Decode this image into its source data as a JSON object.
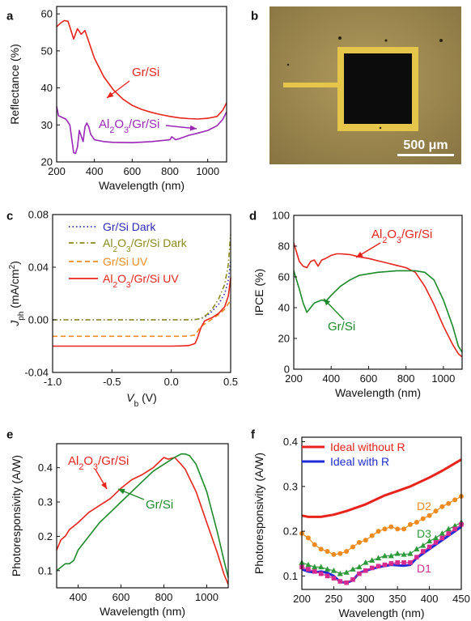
{
  "chart_data": [
    {
      "panel": "a",
      "type": "line",
      "xlabel": "Wavelength (nm)",
      "ylabel": "Reflectance (%)",
      "xlim": [
        200,
        1100
      ],
      "ylim": [
        20,
        62
      ],
      "xticks": [
        200,
        400,
        600,
        800,
        1000
      ],
      "yticks": [
        20,
        30,
        40,
        50,
        60
      ],
      "series": [
        {
          "name": "Gr/Si",
          "color": "#e8231b",
          "x": [
            200,
            220,
            240,
            260,
            270,
            290,
            310,
            330,
            350,
            370,
            400,
            450,
            500,
            550,
            600,
            650,
            700,
            750,
            800,
            850,
            900,
            950,
            1000,
            1050,
            1080,
            1100
          ],
          "y": [
            56.5,
            57.5,
            58.2,
            58.0,
            56.5,
            53.2,
            56.0,
            54.5,
            55.5,
            52.5,
            48.0,
            43.0,
            39.5,
            37.0,
            35.3,
            34.2,
            33.4,
            32.8,
            32.3,
            31.9,
            31.7,
            31.6,
            31.8,
            32.3,
            34.0,
            36.0
          ]
        },
        {
          "name": "Al2O3/Gr/Si",
          "color": "#9a27b8",
          "x": [
            200,
            210,
            230,
            250,
            270,
            290,
            300,
            310,
            320,
            330,
            340,
            350,
            360,
            370,
            380,
            400,
            450,
            500,
            600,
            700,
            800,
            810,
            830,
            850,
            900,
            950,
            1000,
            1050,
            1080,
            1100
          ],
          "y": [
            35.0,
            32.5,
            32.0,
            31.5,
            30.0,
            22.5,
            22.3,
            24.0,
            28.5,
            27.0,
            25.5,
            29.5,
            30.5,
            29.5,
            27.5,
            26.0,
            25.5,
            25.3,
            25.2,
            25.5,
            26.0,
            26.8,
            26.0,
            26.3,
            27.2,
            27.8,
            28.5,
            29.8,
            31.5,
            33.5
          ]
        }
      ],
      "annotations": [
        {
          "text": "Gr/Si"
        },
        {
          "text": "Al2O3/Gr/Si"
        }
      ]
    },
    {
      "panel": "b",
      "type": "image",
      "scalebar_label": "500 μm"
    },
    {
      "panel": "c",
      "type": "line",
      "xlabel": "V_b (V)",
      "ylabel": "J_ph (mA/cm^2)",
      "xlim": [
        -1.0,
        0.5
      ],
      "ylim": [
        -0.04,
        0.08
      ],
      "xticks": [
        -1.0,
        -0.5,
        0.0,
        0.5
      ],
      "yticks": [
        -0.04,
        0.0,
        0.04,
        0.08
      ],
      "legend_position": "top-left",
      "series": [
        {
          "name": "Gr/Si Dark",
          "color": "#2b2ab8",
          "style": "dot",
          "x": [
            -1.0,
            -0.5,
            0.0,
            0.1,
            0.2,
            0.25,
            0.3,
            0.35,
            0.4,
            0.45,
            0.48,
            0.5
          ],
          "y": [
            0,
            0,
            0,
            0,
            0.0002,
            0.001,
            0.003,
            0.007,
            0.012,
            0.02,
            0.03,
            0.045
          ]
        },
        {
          "name": "Al2O3/Gr/Si Dark",
          "color": "#8a8a1a",
          "style": "dashdot",
          "x": [
            -1.0,
            -0.5,
            0.0,
            0.1,
            0.2,
            0.25,
            0.3,
            0.35,
            0.4,
            0.45,
            0.48,
            0.5
          ],
          "y": [
            0,
            0,
            0,
            0,
            0.0002,
            0.001,
            0.004,
            0.009,
            0.016,
            0.027,
            0.042,
            0.065
          ]
        },
        {
          "name": "Gr/Si UV",
          "color": "#ef8a1e",
          "style": "dash",
          "x": [
            -1.0,
            -0.5,
            0.0,
            0.1,
            0.15,
            0.2,
            0.22,
            0.25,
            0.3,
            0.35,
            0.4,
            0.45,
            0.5
          ],
          "y": [
            -0.0125,
            -0.0125,
            -0.0125,
            -0.0125,
            -0.0123,
            -0.0115,
            -0.009,
            -0.005,
            -0.002,
            0.001,
            0.004,
            0.008,
            0.015
          ]
        },
        {
          "name": "Al2O3/Gr/Si UV",
          "color": "#e8231b",
          "style": "solid",
          "x": [
            -1.0,
            -0.5,
            0.0,
            0.1,
            0.15,
            0.2,
            0.22,
            0.25,
            0.28,
            0.3,
            0.35,
            0.4,
            0.45,
            0.48,
            0.5
          ],
          "y": [
            -0.02,
            -0.02,
            -0.02,
            -0.0198,
            -0.0195,
            -0.018,
            -0.014,
            -0.006,
            -0.001,
            0.0,
            0.002,
            0.005,
            0.01,
            0.018,
            0.032
          ]
        }
      ]
    },
    {
      "panel": "d",
      "type": "line",
      "xlabel": "Wavelength (nm)",
      "ylabel": "IPCE (%)",
      "xlim": [
        200,
        1100
      ],
      "ylim": [
        0,
        100
      ],
      "xticks": [
        200,
        400,
        600,
        800,
        1000
      ],
      "yticks": [
        0,
        20,
        40,
        60,
        80,
        100
      ],
      "series": [
        {
          "name": "Al2O3/Gr/Si",
          "color": "#e8231b",
          "x": [
            200,
            210,
            230,
            250,
            270,
            290,
            310,
            330,
            350,
            370,
            400,
            430,
            450,
            500,
            550,
            600,
            650,
            700,
            750,
            800,
            850,
            900,
            950,
            1000,
            1050,
            1080,
            1100
          ],
          "y": [
            82,
            78,
            70,
            67,
            66,
            70,
            71,
            67,
            71,
            72,
            74,
            75,
            75,
            74.5,
            73,
            72,
            70.5,
            69,
            67.5,
            66,
            63,
            54,
            42,
            28,
            16,
            10,
            8
          ]
        },
        {
          "name": "Gr/Si",
          "color": "#1d8a2a",
          "x": [
            200,
            210,
            230,
            250,
            270,
            290,
            310,
            330,
            350,
            370,
            400,
            450,
            500,
            550,
            600,
            650,
            700,
            750,
            800,
            850,
            900,
            950,
            1000,
            1050,
            1080,
            1100
          ],
          "y": [
            64,
            60,
            52,
            43,
            37,
            40,
            43,
            44,
            45,
            44,
            48,
            54,
            58,
            61,
            62,
            63,
            63.5,
            64,
            64,
            64,
            63,
            58,
            45,
            28,
            15,
            11
          ]
        }
      ],
      "annotations": [
        {
          "text": "Al2O3/Gr/Si"
        },
        {
          "text": "Gr/Si"
        }
      ]
    },
    {
      "panel": "e",
      "type": "line",
      "xlabel": "Wavelength (nm)",
      "ylabel": "Photoresponsivity (A/W)",
      "xlim": [
        300,
        1100
      ],
      "ylim": [
        0.05,
        0.47
      ],
      "xticks": [
        400,
        600,
        800,
        1000
      ],
      "yticks": [
        0.1,
        0.2,
        0.3,
        0.4
      ],
      "series": [
        {
          "name": "Al2O3/Gr/Si",
          "color": "#e8231b",
          "x": [
            300,
            320,
            340,
            360,
            380,
            400,
            450,
            500,
            550,
            600,
            650,
            700,
            750,
            800,
            820,
            850,
            880,
            900,
            950,
            1000,
            1050,
            1080,
            1100
          ],
          "y": [
            0.16,
            0.19,
            0.2,
            0.22,
            0.23,
            0.24,
            0.27,
            0.29,
            0.31,
            0.34,
            0.365,
            0.38,
            0.4,
            0.43,
            0.425,
            0.43,
            0.41,
            0.395,
            0.33,
            0.24,
            0.15,
            0.09,
            0.06
          ]
        },
        {
          "name": "Gr/Si",
          "color": "#1d8a2a",
          "x": [
            300,
            320,
            340,
            360,
            380,
            400,
            450,
            500,
            550,
            600,
            650,
            700,
            750,
            800,
            850,
            880,
            900,
            920,
            950,
            1000,
            1050,
            1080,
            1100
          ],
          "y": [
            0.1,
            0.11,
            0.12,
            0.12,
            0.13,
            0.16,
            0.2,
            0.24,
            0.27,
            0.3,
            0.33,
            0.36,
            0.39,
            0.41,
            0.43,
            0.44,
            0.44,
            0.435,
            0.41,
            0.33,
            0.21,
            0.13,
            0.08
          ]
        }
      ],
      "annotations": [
        {
          "text": "Al2O3/Gr/Si"
        },
        {
          "text": "Gr/Si"
        }
      ]
    },
    {
      "panel": "f",
      "type": "line",
      "xlabel": "Wavelength (nm)",
      "ylabel": "Photoresponsivity (A/W)",
      "xlim": [
        200,
        450
      ],
      "ylim": [
        0.07,
        0.41
      ],
      "xticks": [
        200,
        250,
        300,
        350,
        400,
        450
      ],
      "yticks": [
        0.1,
        0.2,
        0.3,
        0.4
      ],
      "legend_position": "top-left",
      "series": [
        {
          "name": "Ideal without R",
          "color": "#e8231b",
          "style": "solid",
          "width": 3,
          "x": [
            200,
            210,
            220,
            230,
            250,
            270,
            300,
            330,
            350,
            370,
            400,
            420,
            450
          ],
          "y": [
            0.235,
            0.232,
            0.232,
            0.232,
            0.237,
            0.245,
            0.26,
            0.28,
            0.29,
            0.3,
            0.32,
            0.335,
            0.36
          ]
        },
        {
          "name": "Ideal with R",
          "color": "#1f2bd6",
          "style": "solid",
          "width": 3,
          "x": [
            200,
            210,
            220,
            230,
            240,
            250,
            260,
            270,
            280,
            290,
            300,
            320,
            340,
            360,
            370,
            380,
            400,
            420,
            450
          ],
          "y": [
            0.115,
            0.11,
            0.108,
            0.11,
            0.107,
            0.1,
            0.087,
            0.085,
            0.09,
            0.107,
            0.112,
            0.12,
            0.125,
            0.123,
            0.125,
            0.14,
            0.16,
            0.18,
            0.21
          ]
        },
        {
          "name": "D2",
          "color": "#ef8a1e",
          "marker": "circle",
          "x": [
            200,
            210,
            220,
            230,
            240,
            250,
            260,
            270,
            280,
            290,
            300,
            310,
            320,
            330,
            340,
            350,
            360,
            370,
            380,
            390,
            400,
            410,
            420,
            430,
            440,
            450
          ],
          "y": [
            0.195,
            0.185,
            0.17,
            0.16,
            0.155,
            0.148,
            0.15,
            0.155,
            0.165,
            0.175,
            0.18,
            0.19,
            0.2,
            0.205,
            0.21,
            0.205,
            0.205,
            0.215,
            0.22,
            0.228,
            0.235,
            0.245,
            0.255,
            0.262,
            0.27,
            0.278
          ]
        },
        {
          "name": "D3",
          "color": "#2d9a3a",
          "marker": "triangle",
          "x": [
            200,
            210,
            220,
            230,
            240,
            250,
            260,
            270,
            280,
            290,
            300,
            310,
            320,
            330,
            340,
            350,
            360,
            370,
            380,
            390,
            400,
            410,
            420,
            430,
            440,
            450
          ],
          "y": [
            0.13,
            0.125,
            0.12,
            0.12,
            0.115,
            0.112,
            0.105,
            0.108,
            0.115,
            0.12,
            0.13,
            0.135,
            0.14,
            0.145,
            0.145,
            0.15,
            0.148,
            0.15,
            0.16,
            0.168,
            0.178,
            0.185,
            0.195,
            0.205,
            0.212,
            0.22
          ]
        },
        {
          "name": "D1",
          "color": "#d62a8f",
          "marker": "square",
          "x": [
            200,
            210,
            220,
            230,
            240,
            250,
            260,
            270,
            280,
            290,
            300,
            310,
            320,
            330,
            340,
            350,
            360,
            370,
            380,
            390,
            400,
            410,
            420,
            430,
            440,
            450
          ],
          "y": [
            0.12,
            0.115,
            0.11,
            0.105,
            0.1,
            0.095,
            0.088,
            0.085,
            0.092,
            0.105,
            0.112,
            0.118,
            0.122,
            0.125,
            0.128,
            0.13,
            0.13,
            0.13,
            0.142,
            0.155,
            0.165,
            0.175,
            0.185,
            0.195,
            0.205,
            0.215
          ]
        }
      ],
      "annotations": [
        {
          "text": "D2"
        },
        {
          "text": "D3"
        },
        {
          "text": "D1"
        }
      ]
    }
  ]
}
